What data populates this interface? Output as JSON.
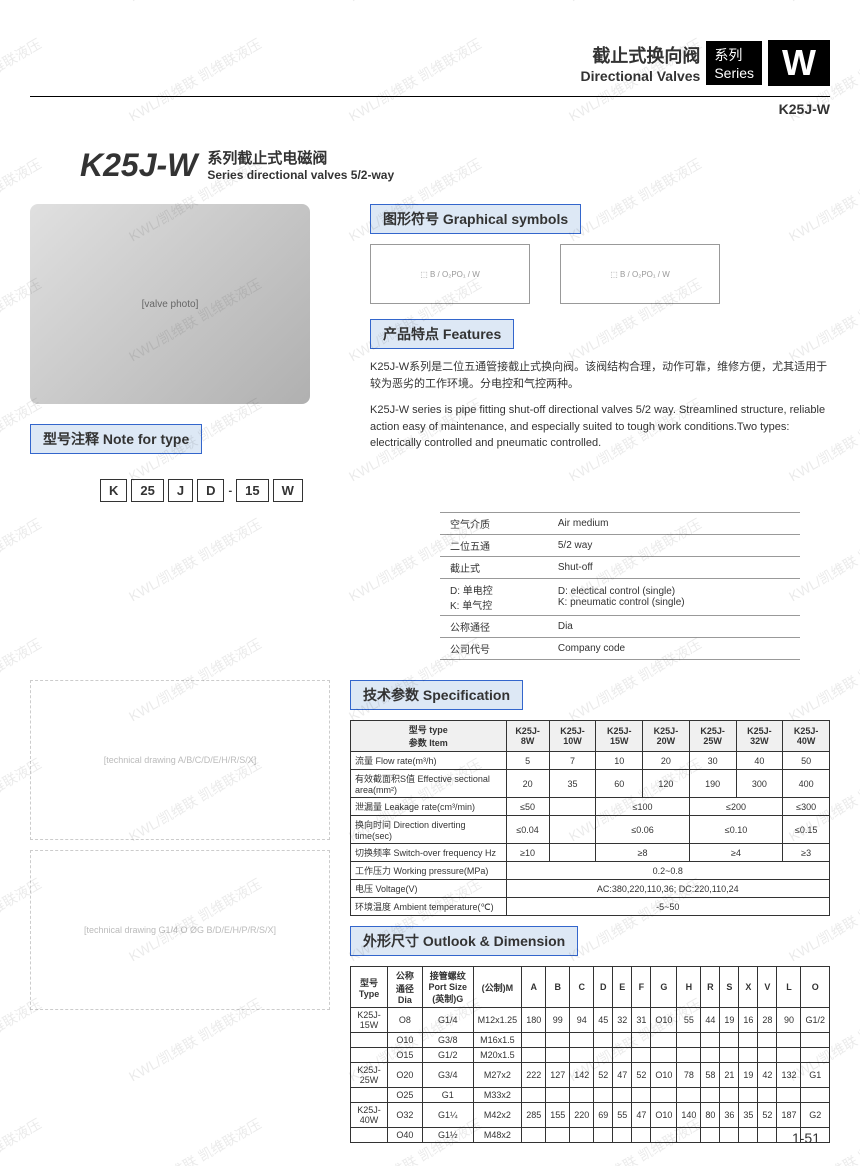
{
  "watermark": "KWL/凯维联 凯维联液压",
  "header": {
    "title_cn": "截止式换向阀",
    "title_en": "Directional Valves",
    "series_cn": "系列",
    "series_en": "Series",
    "letter": "W",
    "model": "K25J-W"
  },
  "main": {
    "model": "K25J-W",
    "sub_cn": "系列截止式电磁阀",
    "sub_en": "Series directional valves 5/2-way"
  },
  "sections": {
    "symbols": "图形符号 Graphical symbols",
    "features": "产品特点 Features",
    "note_type": "型号注释 Note for type",
    "specification": "技术参数 Specification",
    "dimension": "外形尺寸 Outlook & Dimension"
  },
  "symbol_labels": {
    "b": "B",
    "w": "W",
    "ports": "O₂ P O₁"
  },
  "features_cn": "K25J-W系列是二位五通管接截止式换向阀。该阀结构合理，动作可靠，维修方便，尤其适用于较为恶劣的工作环境。分电控和气控两种。",
  "features_en": "K25J-W series is pipe fitting shut-off directional valves 5/2 way. Streamlined structure, reliable action easy of maintenance, and especially suited to tough work conditions.Two types: electrically controlled and pneumatic controlled.",
  "type_code": [
    "K",
    "25",
    "J",
    "D",
    "-",
    "15",
    "W"
  ],
  "type_table": [
    {
      "cn": "空气介质",
      "en": "Air medium"
    },
    {
      "cn": "二位五通",
      "en": "5/2 way"
    },
    {
      "cn": "截止式",
      "en": "Shut-off"
    },
    {
      "cn": "D: 单电控\nK: 单气控",
      "en": "D: electical control (single)\nK: pneumatic control (single)"
    },
    {
      "cn": "公称通径",
      "en": "Dia"
    },
    {
      "cn": "公司代号",
      "en": "Company code"
    }
  ],
  "spec": {
    "header_type": "型号 type",
    "header_item": "参数 Item",
    "models": [
      "K25J-8W",
      "K25J-10W",
      "K25J-15W",
      "K25J-20W",
      "K25J-25W",
      "K25J-32W",
      "K25J-40W"
    ],
    "rows": [
      {
        "label": "流量 Flow rate(m³/h)",
        "vals": [
          "5",
          "7",
          "10",
          "20",
          "30",
          "40",
          "50"
        ]
      },
      {
        "label": "有效截面积S值 Effective sectional area(mm²)",
        "vals": [
          "20",
          "35",
          "60",
          "120",
          "190",
          "300",
          "400"
        ]
      },
      {
        "label": "泄漏量 Leakage rate(cm³/min)",
        "vals": [
          "≤50",
          "",
          "≤100",
          "",
          "≤200",
          "",
          "≤300"
        ],
        "spans": [
          1,
          2,
          0,
          2,
          0,
          2,
          0
        ],
        "merge": [
          [
            1,
            2
          ],
          [
            3,
            2
          ],
          [
            5,
            2
          ]
        ]
      },
      {
        "label": "换向时间 Direction diverting time(sec)",
        "vals": [
          "≤0.04",
          "",
          "≤0.06",
          "",
          "≤0.10",
          "",
          "≤0.15"
        ],
        "merge": [
          [
            1,
            2
          ],
          [
            3,
            2
          ],
          [
            5,
            2
          ]
        ]
      },
      {
        "label": "切换频率 Switch-over frequency Hz",
        "vals": [
          "≥10",
          "",
          "≥8",
          "",
          "≥4",
          "",
          "≥3"
        ],
        "merge": [
          [
            1,
            2
          ],
          [
            3,
            2
          ],
          [
            5,
            2
          ]
        ]
      },
      {
        "label": "工作压力 Working pressure(MPa)",
        "vals": [
          "0.2~0.8"
        ],
        "full": true
      },
      {
        "label": "电压 Voltage(V)",
        "vals": [
          "AC:380,220,110,36; DC:220,110,24"
        ],
        "full": true
      },
      {
        "label": "环境温度 Ambient temperature(℃)",
        "vals": [
          "-5~50"
        ],
        "full": true
      }
    ]
  },
  "dim": {
    "header": [
      "型号Type",
      "公称通径 Dia",
      "接管螺纹 Port Size (英制)G",
      "(公制)M",
      "A",
      "B",
      "C",
      "D",
      "E",
      "F",
      "G",
      "H",
      "R",
      "S",
      "X",
      "V",
      "L",
      "O"
    ],
    "rows": [
      [
        "K25J-15W",
        "O8",
        "G1/4",
        "M12x1.25",
        "180",
        "99",
        "94",
        "45",
        "32",
        "31",
        "O10",
        "55",
        "44",
        "19",
        "16",
        "28",
        "90",
        "G1/2"
      ],
      [
        "",
        "O10",
        "G3/8",
        "M16x1.5",
        "",
        "",
        "",
        "",
        "",
        "",
        "",
        "",
        "",
        "",
        "",
        "",
        "",
        ""
      ],
      [
        "",
        "O15",
        "G1/2",
        "M20x1.5",
        "",
        "",
        "",
        "",
        "",
        "",
        "",
        "",
        "",
        "",
        "",
        "",
        "",
        ""
      ],
      [
        "K25J-25W",
        "O20",
        "G3/4",
        "M27x2",
        "222",
        "127",
        "142",
        "52",
        "47",
        "52",
        "O10",
        "78",
        "58",
        "21",
        "19",
        "42",
        "132",
        "G1"
      ],
      [
        "",
        "O25",
        "G1",
        "M33x2",
        "",
        "",
        "",
        "",
        "",
        "",
        "",
        "",
        "",
        "",
        "",
        "",
        "",
        ""
      ],
      [
        "K25J-40W",
        "O32",
        "G1¼",
        "M42x2",
        "285",
        "155",
        "220",
        "69",
        "55",
        "47",
        "O10",
        "140",
        "80",
        "36",
        "35",
        "52",
        "187",
        "G2"
      ],
      [
        "",
        "O40",
        "G1½",
        "M48x2",
        "",
        "",
        "",
        "",
        "",
        "",
        "",
        "",
        "",
        "",
        "",
        "",
        "",
        ""
      ]
    ]
  },
  "page": "1-51"
}
